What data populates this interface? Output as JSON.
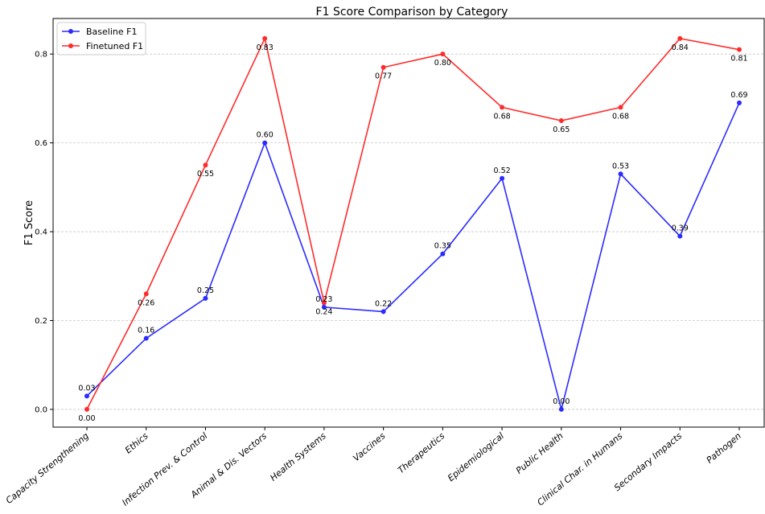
{
  "chart_data": {
    "type": "line",
    "title": "F1 Score Comparison by Category",
    "xlabel": "",
    "ylabel": "F1 Score",
    "ylim": [
      -0.04,
      0.88
    ],
    "yticks": [
      0.0,
      0.2,
      0.4,
      0.6,
      0.8
    ],
    "ytick_labels": [
      "0.0",
      "0.2",
      "0.4",
      "0.6",
      "0.8"
    ],
    "grid": "y-dashed",
    "legend_position": "top-left",
    "categories": [
      "Capacity Strengthening",
      "Ethics",
      "Infection Prev. & Control",
      "Animal & Dis. Vectors",
      "Health Systems",
      "Vaccines",
      "Therapeutics",
      "Epidemiological",
      "Public Health",
      "Clinical Char. in Humans",
      "Secondary Impacts",
      "Pathogen"
    ],
    "series": [
      {
        "name": "Baseline F1",
        "color": "#2b2bff",
        "label_position": "above",
        "values": [
          0.03,
          0.16,
          0.25,
          0.6,
          0.23,
          0.22,
          0.35,
          0.52,
          0.0,
          0.53,
          0.39,
          0.69
        ],
        "labels": [
          "0.03",
          "0.16",
          "0.25",
          "0.60",
          "0.23",
          "0.22",
          "0.35",
          "0.52",
          "0.00",
          "0.53",
          "0.39",
          "0.69"
        ]
      },
      {
        "name": "Finetuned F1",
        "color": "#ff2b2b",
        "label_position": "below",
        "values": [
          0.0,
          0.26,
          0.55,
          0.835,
          0.24,
          0.77,
          0.8,
          0.68,
          0.65,
          0.68,
          0.835,
          0.81
        ],
        "labels": [
          "0.00",
          "0.26",
          "0.55",
          "0.83",
          "0.24",
          "0.77",
          "0.80",
          "0.68",
          "0.65",
          "0.68",
          "0.84",
          "0.81"
        ]
      }
    ]
  }
}
